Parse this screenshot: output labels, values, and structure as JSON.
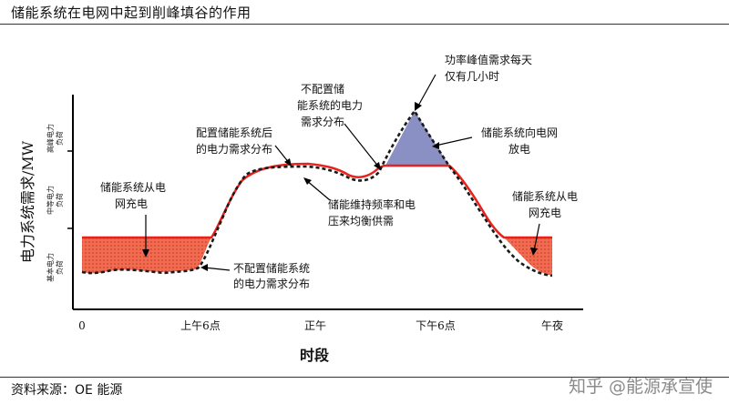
{
  "header": {
    "title": "储能系统在电网中起到削峰填谷的作用"
  },
  "footer": {
    "source": "资料来源：OE 能源",
    "watermark": "知乎 @能源承宣使"
  },
  "diagram": {
    "y_axis_label": "电力系统需求/MW",
    "bands": [
      {
        "line1": "高峰电力",
        "line2": "负荷"
      },
      {
        "line1": "中等电力",
        "line2": "负荷"
      },
      {
        "line1": "基本电力",
        "line2": "负荷"
      }
    ],
    "x_ticks": [
      "0",
      "上午6点",
      "正午",
      "下午6点",
      "午夜"
    ],
    "x_title": "时段",
    "annotations": {
      "peak_note": [
        "功率峰值需求每天",
        "仅有几小时"
      ],
      "no_storage_top": [
        "不配置储",
        "能系统的电力",
        "需求分布"
      ],
      "with_storage": [
        "配置储能系统后",
        "的电力需求分布"
      ],
      "discharge": [
        "储能系统向电网",
        "放电"
      ],
      "charge_left": [
        "储能系统从电",
        "网充电"
      ],
      "balance": [
        "储能维持频率和电",
        "压来均衡供需"
      ],
      "charge_right": [
        "储能系统从电",
        "网充电"
      ],
      "no_storage_bottom": [
        "不配置储能系统",
        "的电力需求分布"
      ]
    },
    "colors": {
      "with_storage_line": "#e8211c",
      "charge_fill": "#f26a4f",
      "discharge_fill": "#8a8fc4",
      "no_storage_line": "#1a1a1a"
    }
  }
}
